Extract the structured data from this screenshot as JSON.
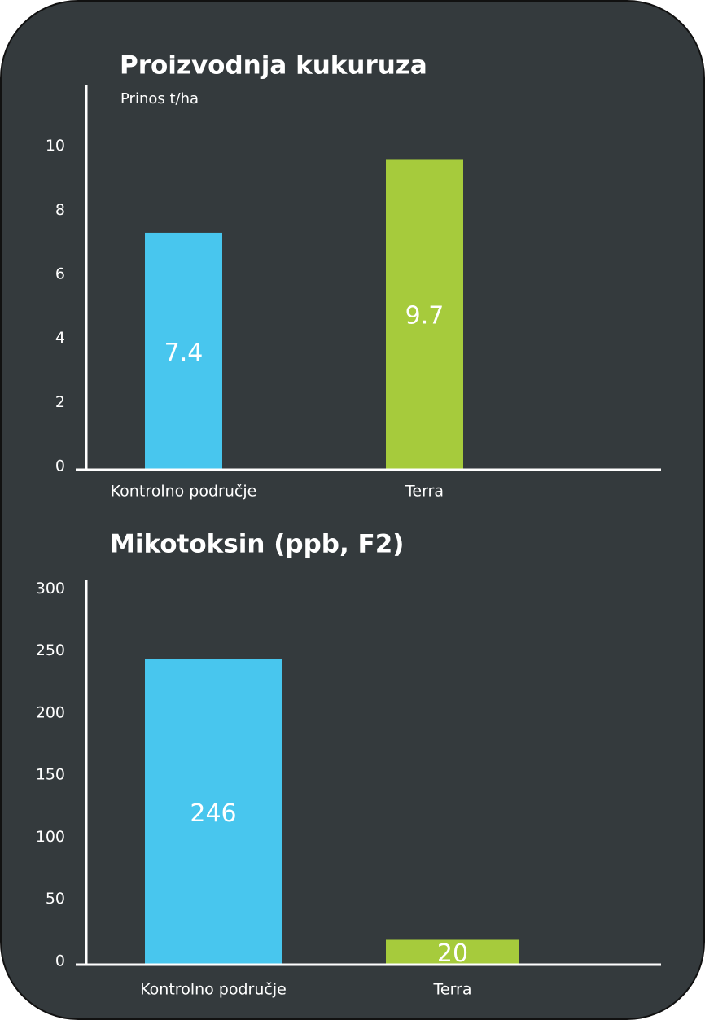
{
  "chart_data": [
    {
      "type": "bar",
      "title": "Proizvodnja kukuruza",
      "y_label": "Prinos t/ha",
      "categories": [
        "Kontrolno područje",
        "Terra"
      ],
      "values": [
        7.4,
        9.7
      ],
      "colors": [
        "#48c6ee",
        "#a6cb3c"
      ],
      "ylim": [
        0,
        12
      ],
      "yticks": [
        0,
        2,
        4,
        6,
        8,
        10
      ]
    },
    {
      "type": "bar",
      "title": "Mikotoksin (ppb, F2)",
      "categories": [
        "Kontrolno područje",
        "Terra"
      ],
      "values": [
        246,
        20
      ],
      "colors": [
        "#48c6ee",
        "#a6cb3c"
      ],
      "ylim": [
        0,
        310
      ],
      "yticks": [
        0,
        50,
        100,
        150,
        200,
        250,
        300
      ]
    }
  ]
}
